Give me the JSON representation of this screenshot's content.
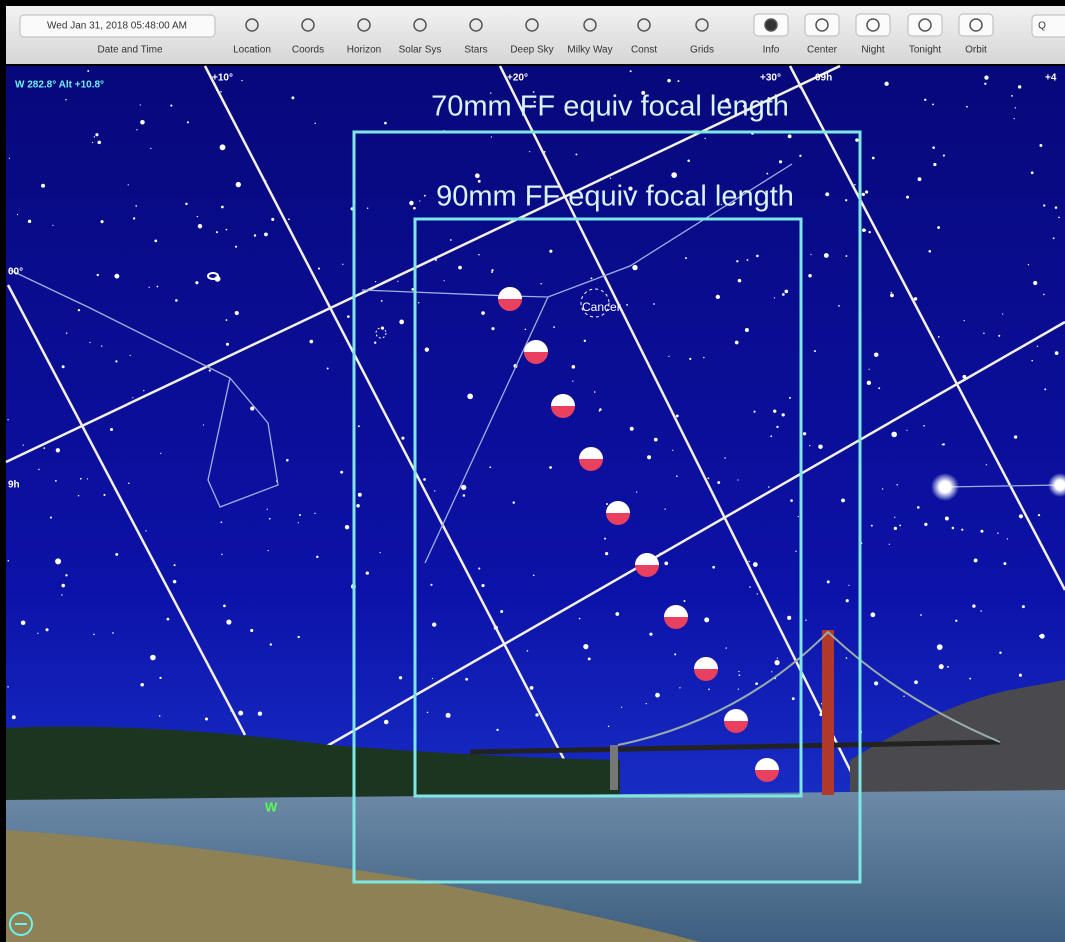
{
  "toolbar": {
    "datetime": "Wed Jan 31, 2018  05:48:00 AM",
    "datetime_label": "Date and Time",
    "buttons": [
      "Location",
      "Coords",
      "Horizon",
      "Solar Sys",
      "Stars",
      "Deep Sky",
      "Milky Way",
      "Const",
      "Grids",
      "Info",
      "Center",
      "Night",
      "Tonight",
      "Orbit"
    ],
    "search": "Q"
  },
  "sky": {
    "readout": "W 282.8° Alt +10.8°",
    "grid_labels": [
      "+10°",
      "+20°",
      "+30°",
      "09h",
      "+4",
      "00°",
      "9h"
    ],
    "frames": [
      "70mm FF equiv focal length",
      "90mm FF equiv focal length"
    ],
    "object_label": "Cancer",
    "horizon_marker": "W"
  }
}
